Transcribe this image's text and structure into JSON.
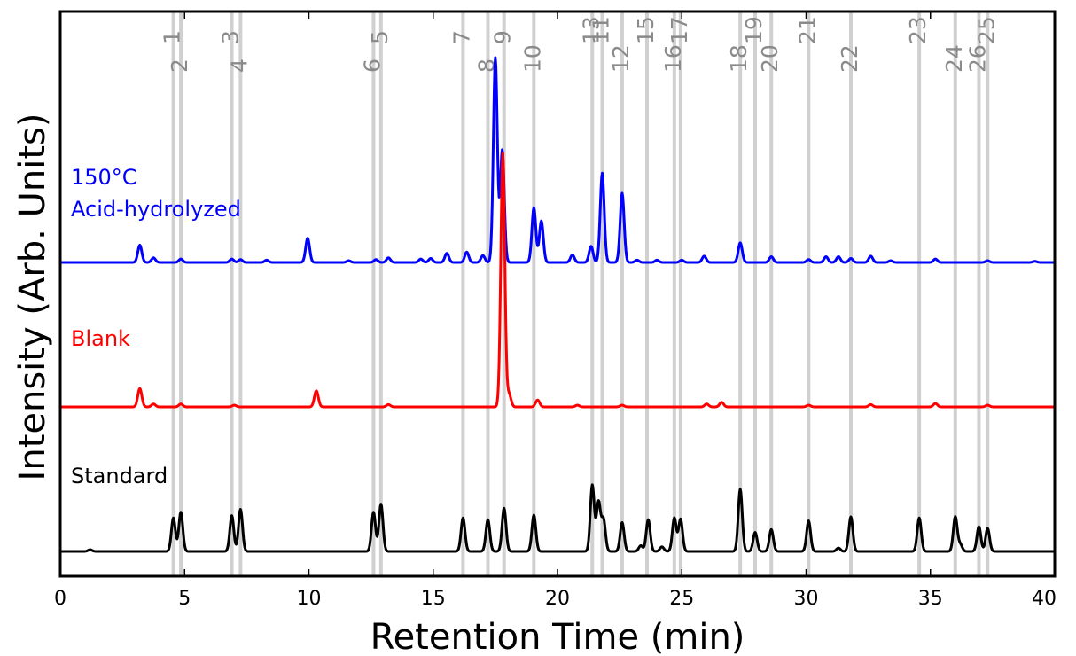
{
  "chart_data": {
    "type": "line",
    "title": "",
    "xlabel": "Retention Time (min)",
    "ylabel": "Intensity (Arb. Units)",
    "xlim": [
      0,
      40
    ],
    "x_ticks": [
      "0",
      "5",
      "10",
      "15",
      "20",
      "25",
      "30",
      "35",
      "40"
    ],
    "y_ticks_shown": false,
    "grid": false,
    "legend": "inline labels at left",
    "reference_lines": [
      {
        "label": "1",
        "x": 4.55
      },
      {
        "label": "2",
        "x": 4.85
      },
      {
        "label": "3",
        "x": 6.9
      },
      {
        "label": "4",
        "x": 7.25
      },
      {
        "label": "5",
        "x": 12.9
      },
      {
        "label": "6",
        "x": 12.6
      },
      {
        "label": "7",
        "x": 16.2
      },
      {
        "label": "8",
        "x": 17.2
      },
      {
        "label": "9",
        "x": 17.85
      },
      {
        "label": "10",
        "x": 19.05
      },
      {
        "label": "11",
        "x": 21.8
      },
      {
        "label": "12",
        "x": 22.6
      },
      {
        "label": "13",
        "x": 21.4
      },
      {
        "label": "15",
        "x": 23.6
      },
      {
        "label": "16",
        "x": 24.7
      },
      {
        "label": "17",
        "x": 24.95
      },
      {
        "label": "18",
        "x": 27.35
      },
      {
        "label": "19",
        "x": 27.95
      },
      {
        "label": "20",
        "x": 28.6
      },
      {
        "label": "21",
        "x": 30.1
      },
      {
        "label": "22",
        "x": 31.8
      },
      {
        "label": "23",
        "x": 34.55
      },
      {
        "label": "24",
        "x": 36.0
      },
      {
        "label": "25",
        "x": 37.3
      },
      {
        "label": "26",
        "x": 36.95
      }
    ],
    "series": [
      {
        "name": "150°C\nAcid-hydrolyzed",
        "color": "#0000ff",
        "label_lines": [
          "150°C",
          "Acid-hydrolyzed"
        ],
        "baseline": 0.0,
        "peaks": [
          [
            3.2,
            0.3
          ],
          [
            3.75,
            0.08
          ],
          [
            4.85,
            0.06
          ],
          [
            6.9,
            0.06
          ],
          [
            7.25,
            0.05
          ],
          [
            8.3,
            0.04
          ],
          [
            9.95,
            0.42
          ],
          [
            11.6,
            0.03
          ],
          [
            12.7,
            0.05
          ],
          [
            13.2,
            0.08
          ],
          [
            14.5,
            0.06
          ],
          [
            14.9,
            0.07
          ],
          [
            15.55,
            0.16
          ],
          [
            16.35,
            0.18
          ],
          [
            17.0,
            0.12
          ],
          [
            17.5,
            3.55
          ],
          [
            17.78,
            1.95
          ],
          [
            19.05,
            0.95
          ],
          [
            19.35,
            0.72
          ],
          [
            20.6,
            0.13
          ],
          [
            21.35,
            0.28
          ],
          [
            21.8,
            1.55
          ],
          [
            22.6,
            1.2
          ],
          [
            23.2,
            0.04
          ],
          [
            24.0,
            0.04
          ],
          [
            25.0,
            0.04
          ],
          [
            25.9,
            0.11
          ],
          [
            27.35,
            0.34
          ],
          [
            28.6,
            0.1
          ],
          [
            30.1,
            0.05
          ],
          [
            30.8,
            0.1
          ],
          [
            31.3,
            0.1
          ],
          [
            31.8,
            0.07
          ],
          [
            32.6,
            0.11
          ],
          [
            33.4,
            0.03
          ],
          [
            35.2,
            0.06
          ],
          [
            37.3,
            0.03
          ],
          [
            39.2,
            0.02
          ]
        ]
      },
      {
        "name": "Blank",
        "color": "#ff0000",
        "label_lines": [
          "Blank"
        ],
        "baseline": 0.0,
        "peaks": [
          [
            3.2,
            0.32
          ],
          [
            3.75,
            0.05
          ],
          [
            4.85,
            0.05
          ],
          [
            7.0,
            0.03
          ],
          [
            10.3,
            0.28
          ],
          [
            13.2,
            0.04
          ],
          [
            17.8,
            4.4
          ],
          [
            18.05,
            0.22
          ],
          [
            19.2,
            0.12
          ],
          [
            20.8,
            0.03
          ],
          [
            22.6,
            0.03
          ],
          [
            26.0,
            0.05
          ],
          [
            26.6,
            0.08
          ],
          [
            30.1,
            0.03
          ],
          [
            32.6,
            0.04
          ],
          [
            35.2,
            0.06
          ],
          [
            37.3,
            0.03
          ]
        ]
      },
      {
        "name": "Standard",
        "color": "#000000",
        "label_lines": [
          "Standard"
        ],
        "baseline": 0.0,
        "peaks": [
          [
            1.2,
            0.03
          ],
          [
            4.55,
            0.58
          ],
          [
            4.85,
            0.68
          ],
          [
            6.9,
            0.62
          ],
          [
            7.25,
            0.73
          ],
          [
            12.6,
            0.68
          ],
          [
            12.9,
            0.82
          ],
          [
            16.2,
            0.58
          ],
          [
            17.2,
            0.55
          ],
          [
            17.85,
            0.75
          ],
          [
            19.05,
            0.63
          ],
          [
            21.4,
            1.15
          ],
          [
            21.65,
            0.85
          ],
          [
            21.85,
            0.55
          ],
          [
            22.6,
            0.5
          ],
          [
            23.35,
            0.1
          ],
          [
            23.65,
            0.55
          ],
          [
            24.2,
            0.08
          ],
          [
            24.7,
            0.58
          ],
          [
            24.95,
            0.56
          ],
          [
            27.35,
            1.08
          ],
          [
            27.95,
            0.33
          ],
          [
            28.6,
            0.38
          ],
          [
            30.1,
            0.53
          ],
          [
            31.3,
            0.06
          ],
          [
            31.8,
            0.6
          ],
          [
            34.55,
            0.58
          ],
          [
            36.0,
            0.6
          ],
          [
            36.2,
            0.12
          ],
          [
            36.95,
            0.43
          ],
          [
            37.3,
            0.4
          ]
        ]
      }
    ]
  }
}
